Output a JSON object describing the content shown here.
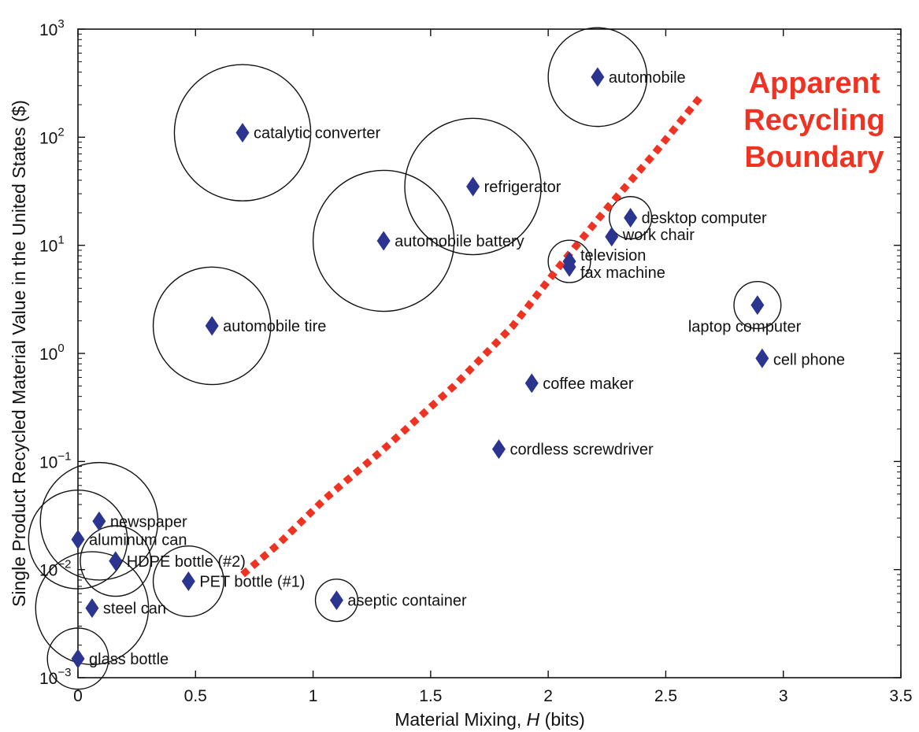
{
  "chart_data": {
    "type": "scatter",
    "xlabel_prefix": "Material Mixing, ",
    "xlabel_var": "H",
    "xlabel_suffix": " (bits)",
    "ylabel": "Single Product Recycled Material Value in the United States ($)",
    "xlim": [
      0,
      3.5
    ],
    "ylim": [
      0.001,
      1000
    ],
    "yscale": "log",
    "grid": false,
    "x_ticks": [
      0,
      0.5,
      1,
      1.5,
      2,
      2.5,
      3,
      3.5
    ],
    "x_tick_labels": [
      "0",
      "0.5",
      "1",
      "1.5",
      "2",
      "2.5",
      "3",
      "3.5"
    ],
    "y_tick_exponents": [
      "−3",
      "−2",
      "−1",
      "0",
      "1",
      "2",
      "3"
    ],
    "y_tick_base": "10",
    "marker_color": "#2b3590",
    "points": [
      {
        "label": "automobile",
        "x": 2.21,
        "y": 360,
        "r": 0.21
      },
      {
        "label": "catalytic converter",
        "x": 0.7,
        "y": 110,
        "r": 0.29
      },
      {
        "label": "refrigerator",
        "x": 1.68,
        "y": 35,
        "r": 0.29
      },
      {
        "label": "desktop computer",
        "x": 2.35,
        "y": 18,
        "r": 0.09
      },
      {
        "label": "work chair",
        "x": 2.27,
        "y": 12,
        "r": 0
      },
      {
        "label": "automobile battery",
        "x": 1.3,
        "y": 11,
        "r": 0.3
      },
      {
        "label": "television",
        "x": 2.09,
        "y": 7.1,
        "r": 0.09
      },
      {
        "label": "fax machine",
        "x": 2.09,
        "y": 6.3,
        "r": 0
      },
      {
        "label": "laptop computer",
        "x": 2.89,
        "y": 2.8,
        "r": 0.1
      },
      {
        "label": "automobile tire",
        "x": 0.57,
        "y": 1.8,
        "r": 0.25
      },
      {
        "label": "cell phone",
        "x": 2.91,
        "y": 0.9,
        "r": 0.018
      },
      {
        "label": "coffee maker",
        "x": 1.93,
        "y": 0.53,
        "r": 0
      },
      {
        "label": "cordless screwdriver",
        "x": 1.79,
        "y": 0.13,
        "r": 0
      },
      {
        "label": "newspaper",
        "x": 0.09,
        "y": 0.028,
        "r": 0.25
      },
      {
        "label": "aluminum can",
        "x": 0.0,
        "y": 0.019,
        "r": 0.21
      },
      {
        "label": "HDPE bottle (#2)",
        "x": 0.16,
        "y": 0.012,
        "r": 0.15
      },
      {
        "label": "PET bottle (#1)",
        "x": 0.47,
        "y": 0.0078,
        "r": 0.15
      },
      {
        "label": "aseptic container",
        "x": 1.1,
        "y": 0.0052,
        "r": 0.09
      },
      {
        "label": "steel can",
        "x": 0.06,
        "y": 0.0044,
        "r": 0.24
      },
      {
        "label": "glass bottle",
        "x": 0.0,
        "y": 0.0015,
        "r": 0.13
      }
    ],
    "boundary": {
      "label_lines": [
        "Apparent",
        "Recycling",
        "Boundary"
      ],
      "color": "#ee3322",
      "points": [
        [
          0.7,
          0.009
        ],
        [
          0.85,
          0.017
        ],
        [
          1.05,
          0.045
        ],
        [
          1.3,
          0.13
        ],
        [
          1.6,
          0.5
        ],
        [
          1.85,
          1.8
        ],
        [
          2.05,
          6.5
        ],
        [
          2.25,
          22
        ],
        [
          2.45,
          70
        ],
        [
          2.65,
          240
        ]
      ]
    }
  }
}
